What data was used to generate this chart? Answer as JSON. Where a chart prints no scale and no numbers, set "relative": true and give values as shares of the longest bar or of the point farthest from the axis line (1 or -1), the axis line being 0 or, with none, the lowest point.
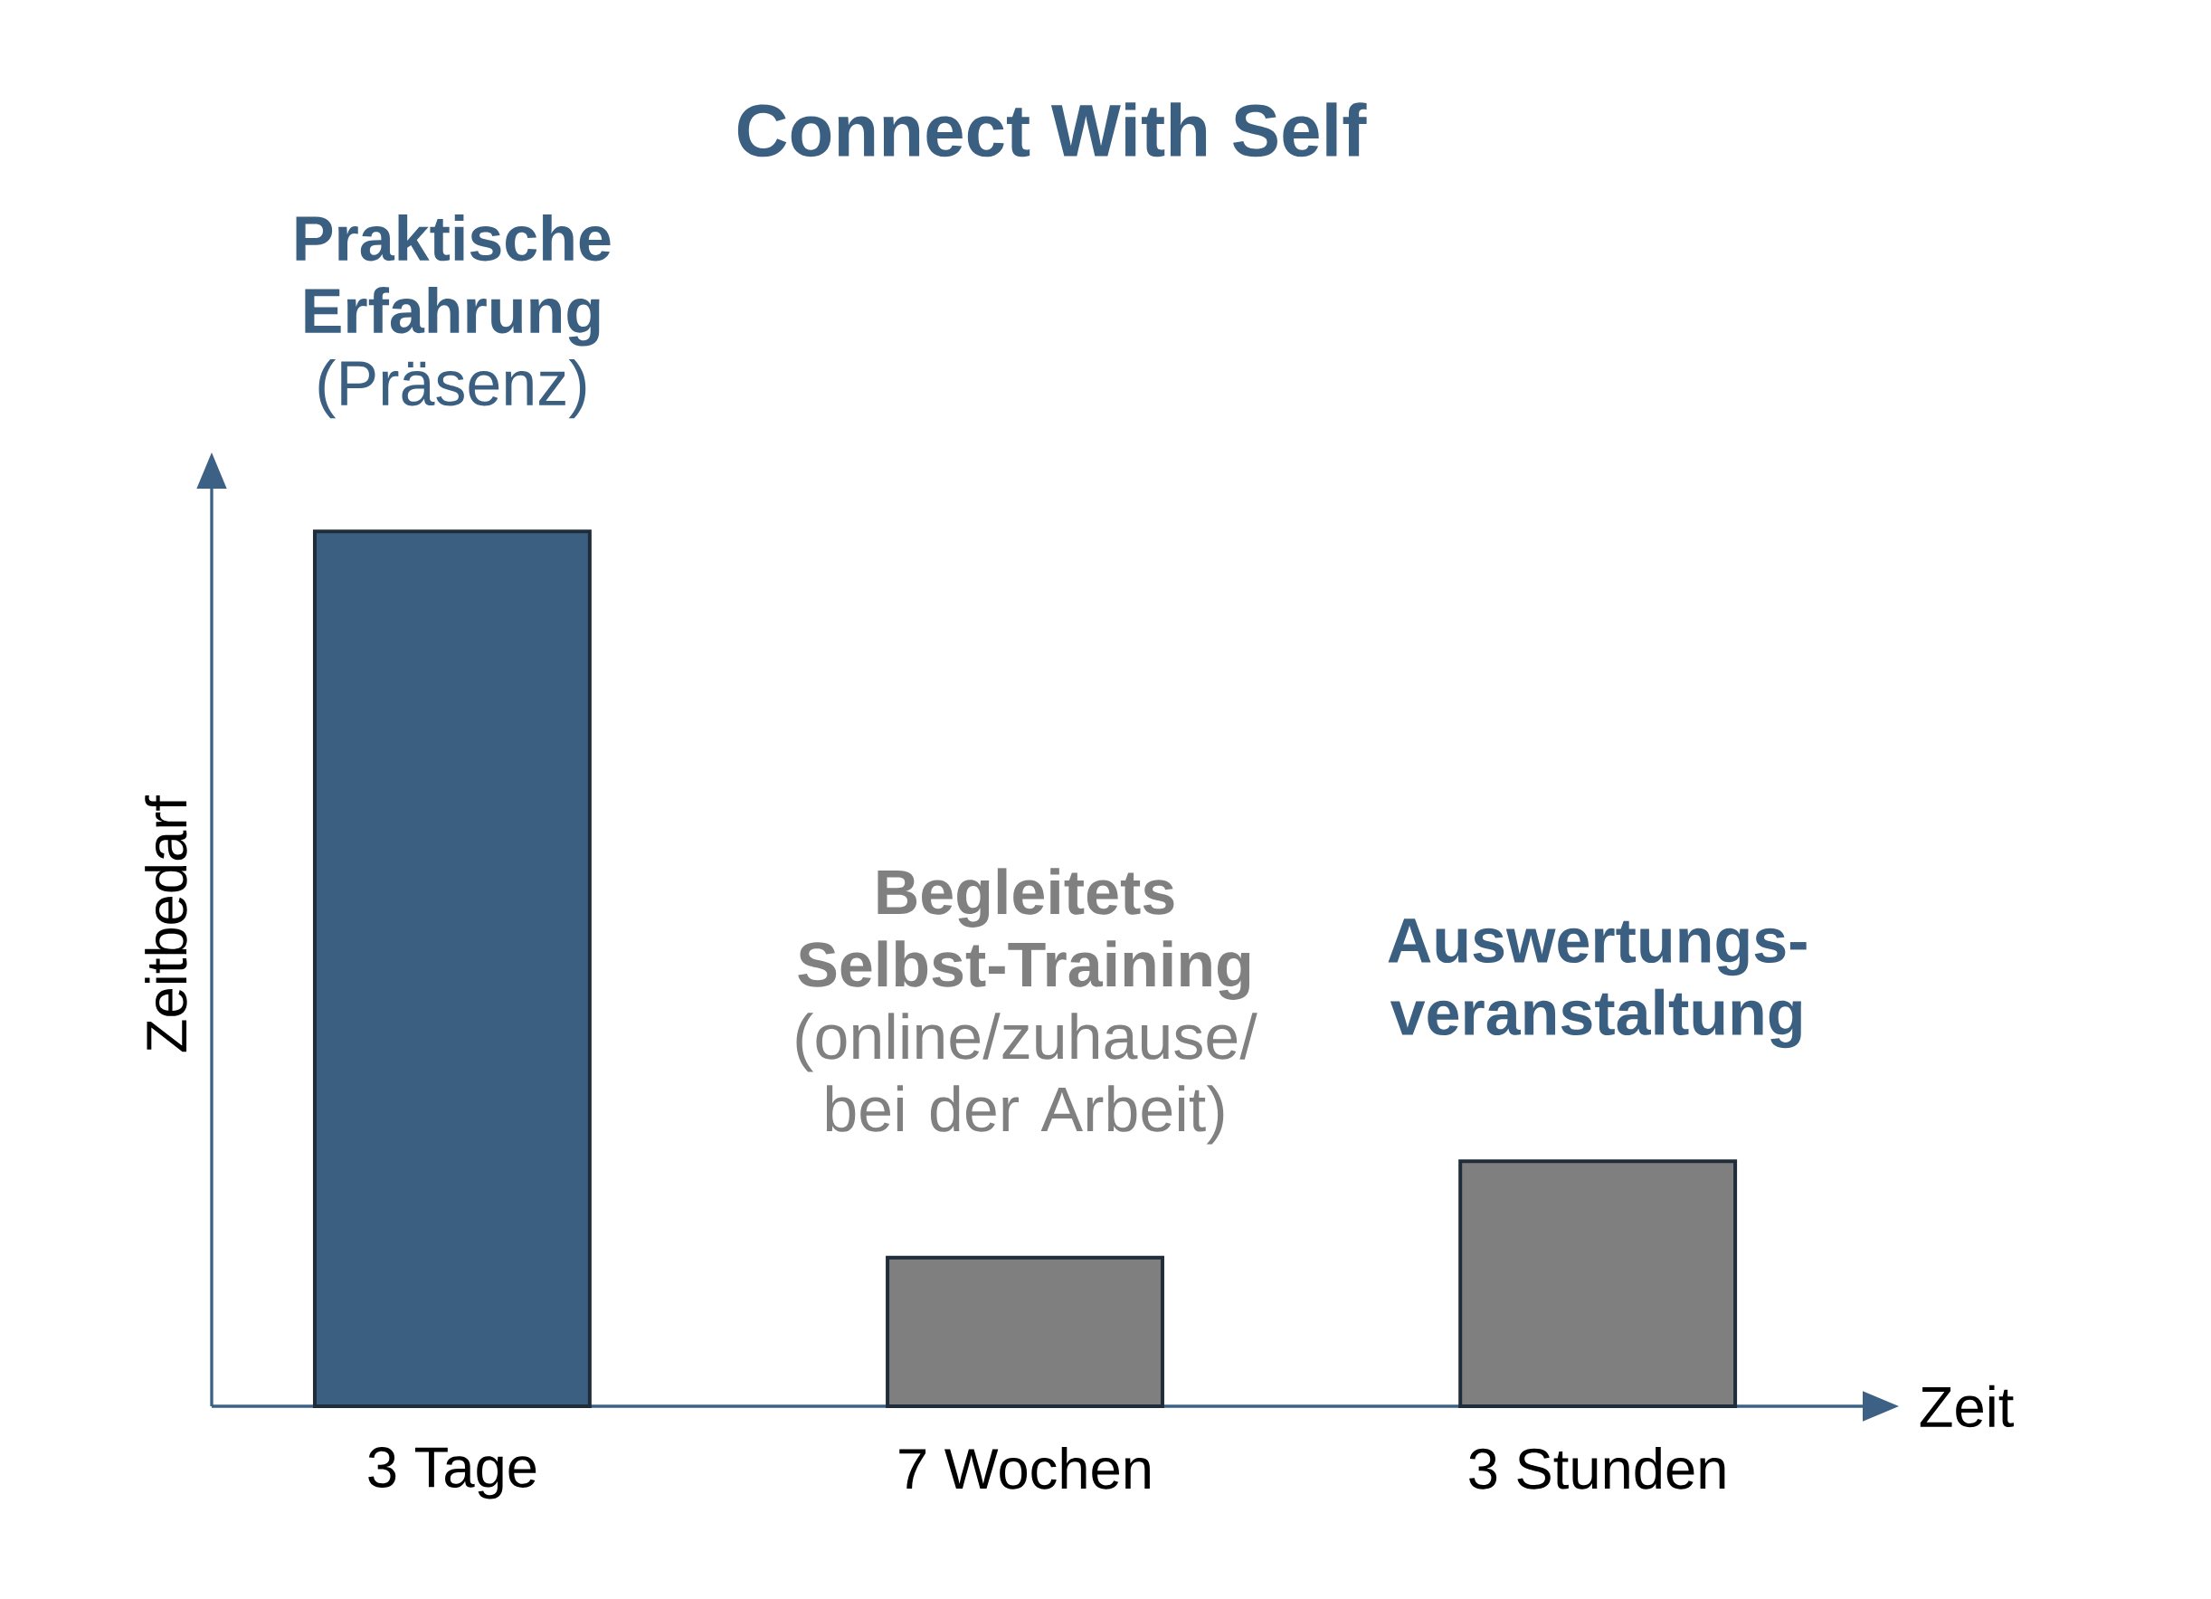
{
  "chart_data": {
    "type": "bar",
    "title": "Connect With Self",
    "xlabel": "Zeit",
    "ylabel": "Zeitbedarf",
    "categories": [
      "3 Tage",
      "7 Wochen",
      "3 Stunden"
    ],
    "values": [
      1,
      0.17,
      0.28
    ],
    "colors": [
      "#3b5f80",
      "#7f7f7f",
      "#7f7f7f"
    ],
    "relative": true,
    "annotations": [
      {
        "text": "**Praktische Erfahrung** (Präsenz)",
        "x": "3 Tage",
        "y": 1
      },
      {
        "text": "**Begleitets Selbst-Training** (online/zuhause/ bei der Arbeit)",
        "x": "7 Wochen",
        "y": 0.17
      },
      {
        "text": "Auswertungs- veranstaltung",
        "x": "3 Stunden",
        "y": 0.28
      }
    ]
  }
}
